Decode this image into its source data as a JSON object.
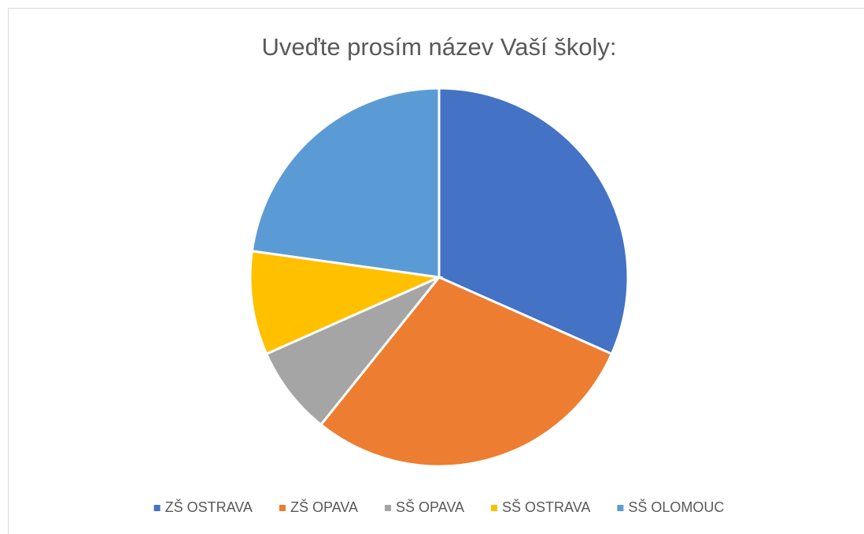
{
  "chart_data": {
    "type": "pie",
    "title": "Uveďte prosím název Vaší školy:",
    "categories": [
      "ZŠ OSTRAVA",
      "ZŠ OPAVA",
      "SŠ OPAVA",
      "SŠ OSTRAVA",
      "SŠ OLOMOUC"
    ],
    "values": [
      25,
      23,
      6,
      7,
      18
    ],
    "colors": [
      "#4472c4",
      "#ed7d31",
      "#a5a5a5",
      "#ffc000",
      "#5b9bd5"
    ],
    "legend": "bottom"
  }
}
